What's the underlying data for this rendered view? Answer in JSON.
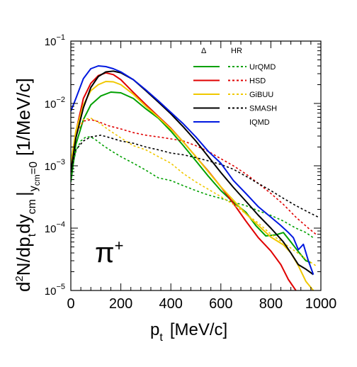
{
  "chart_data": {
    "type": "line",
    "ylog": true,
    "xlim": [
      0,
      1000
    ],
    "ylim": [
      1e-05,
      0.1
    ],
    "xticks": [
      {
        "v": 0,
        "label": "0"
      },
      {
        "v": 200,
        "label": "200"
      },
      {
        "v": 400,
        "label": "400"
      },
      {
        "v": 600,
        "label": "600"
      },
      {
        "v": 800,
        "label": "800"
      },
      {
        "v": 1000,
        "label": "1000"
      }
    ],
    "yticks": [
      {
        "v": 0.1,
        "base": "10",
        "exp": "−1"
      },
      {
        "v": 0.01,
        "base": "10",
        "exp": "−2"
      },
      {
        "v": 0.001,
        "base": "10",
        "exp": "−3"
      },
      {
        "v": 0.0001,
        "base": "10",
        "exp": "−4"
      },
      {
        "v": 1e-05,
        "base": "10",
        "exp": "−5"
      }
    ],
    "xlabel": {
      "main": "p",
      "sub": "t",
      "unit": "[MeV/c]"
    },
    "ylabel": {
      "pre": "d",
      "sup": "2",
      "mid": "N/dp",
      "sub1": "t",
      "mid2": "dy",
      "sub2": "cm",
      "bar": "|",
      "sub3": "y",
      "sub3b": "cm",
      "sub3c": "=0",
      "unit": "[1/MeV/c]"
    },
    "annotation": {
      "base": "π",
      "sup": "+"
    },
    "legend": {
      "header_delta": "Δ",
      "header_hr": "HR",
      "position": "top-right",
      "entries": [
        {
          "name": "UrQMD",
          "color": "#00a000",
          "hr": true
        },
        {
          "name": "HSD",
          "color": "#e00000",
          "hr": true
        },
        {
          "name": "GiBUU",
          "color": "#f0c800",
          "hr": true
        },
        {
          "name": "SMASH",
          "color": "#000000",
          "hr": true
        },
        {
          "name": "IQMD",
          "color": "#0018e0",
          "hr": false
        }
      ]
    },
    "series": [
      {
        "model": "UrQMD",
        "component": "Delta",
        "color": "#00a000",
        "dash": false,
        "points": [
          [
            0,
            0.00055
          ],
          [
            20,
            0.0022
          ],
          [
            50,
            0.0055
          ],
          [
            80,
            0.0095
          ],
          [
            120,
            0.0132
          ],
          [
            160,
            0.0152
          ],
          [
            200,
            0.0148
          ],
          [
            250,
            0.012
          ],
          [
            300,
            0.0082
          ],
          [
            350,
            0.0058
          ],
          [
            400,
            0.0036
          ],
          [
            450,
            0.0021
          ],
          [
            500,
            0.0012
          ],
          [
            550,
            0.00068
          ],
          [
            600,
            0.0004
          ],
          [
            650,
            0.00026
          ],
          [
            700,
            0.00018
          ],
          [
            740,
            0.00011
          ],
          [
            780,
            7.5e-05
          ],
          [
            820,
            7.8e-05
          ],
          [
            850,
            8.5e-05
          ],
          [
            880,
            6e-05
          ],
          [
            910,
            4.2e-05
          ],
          [
            940,
            3e-05
          ],
          [
            960,
            2.8e-05
          ]
        ]
      },
      {
        "model": "UrQMD",
        "component": "HR",
        "color": "#00a000",
        "dash": true,
        "points": [
          [
            0,
            0.00075
          ],
          [
            20,
            0.0017
          ],
          [
            40,
            0.0025
          ],
          [
            60,
            0.0029
          ],
          [
            80,
            0.0029
          ],
          [
            100,
            0.0026
          ],
          [
            130,
            0.0021
          ],
          [
            160,
            0.00175
          ],
          [
            200,
            0.0014
          ],
          [
            250,
            0.0011
          ],
          [
            300,
            0.00085
          ],
          [
            350,
            0.00064
          ],
          [
            400,
            0.00058
          ],
          [
            450,
            0.00048
          ],
          [
            500,
            0.0004
          ],
          [
            550,
            0.00034
          ],
          [
            600,
            0.0003
          ],
          [
            650,
            0.00026
          ],
          [
            700,
            0.00023
          ],
          [
            750,
            0.00019
          ],
          [
            800,
            0.00016
          ],
          [
            850,
            0.00013
          ],
          [
            900,
            0.0001
          ],
          [
            940,
            8.5e-05
          ],
          [
            970,
            7e-05
          ]
        ]
      },
      {
        "model": "HSD",
        "component": "Delta",
        "color": "#e00000",
        "dash": false,
        "points": [
          [
            0,
            0.001
          ],
          [
            20,
            0.0035
          ],
          [
            50,
            0.012
          ],
          [
            80,
            0.021
          ],
          [
            110,
            0.028
          ],
          [
            140,
            0.031
          ],
          [
            170,
            0.029
          ],
          [
            200,
            0.024
          ],
          [
            250,
            0.015
          ],
          [
            300,
            0.0096
          ],
          [
            350,
            0.0062
          ],
          [
            400,
            0.004
          ],
          [
            450,
            0.0024
          ],
          [
            500,
            0.0014
          ],
          [
            550,
            0.00082
          ],
          [
            600,
            0.00046
          ],
          [
            650,
            0.00025
          ],
          [
            700,
            0.00013
          ],
          [
            750,
            7e-05
          ],
          [
            800,
            4.3e-05
          ],
          [
            840,
            2.6e-05
          ],
          [
            870,
            1.5e-05
          ],
          [
            900,
            1e-05
          ]
        ]
      },
      {
        "model": "HSD",
        "component": "HR",
        "color": "#e00000",
        "dash": true,
        "points": [
          [
            0,
            0.0012
          ],
          [
            20,
            0.0032
          ],
          [
            50,
            0.0052
          ],
          [
            80,
            0.0055
          ],
          [
            110,
            0.0051
          ],
          [
            150,
            0.0044
          ],
          [
            200,
            0.0039
          ],
          [
            250,
            0.0034
          ],
          [
            300,
            0.0031
          ],
          [
            350,
            0.0029
          ],
          [
            400,
            0.0027
          ],
          [
            450,
            0.0025
          ],
          [
            500,
            0.0021
          ],
          [
            550,
            0.0017
          ],
          [
            600,
            0.0013
          ],
          [
            650,
            0.001
          ],
          [
            700,
            0.00074
          ],
          [
            750,
            0.00052
          ],
          [
            800,
            0.00036
          ],
          [
            850,
            0.00024
          ],
          [
            900,
            0.00015
          ],
          [
            950,
            0.0001
          ],
          [
            980,
            8e-05
          ]
        ]
      },
      {
        "model": "GiBUU",
        "component": "Delta",
        "color": "#f0c800",
        "dash": false,
        "points": [
          [
            0,
            0.0011
          ],
          [
            20,
            0.0036
          ],
          [
            50,
            0.0095
          ],
          [
            80,
            0.016
          ],
          [
            110,
            0.02
          ],
          [
            140,
            0.0225
          ],
          [
            170,
            0.0222
          ],
          [
            200,
            0.02
          ],
          [
            250,
            0.014
          ],
          [
            300,
            0.009
          ],
          [
            350,
            0.006
          ],
          [
            400,
            0.0039
          ],
          [
            450,
            0.0024
          ],
          [
            500,
            0.0014
          ],
          [
            550,
            0.0008
          ],
          [
            600,
            0.00046
          ],
          [
            650,
            0.00028
          ],
          [
            700,
            0.00017
          ],
          [
            750,
            0.00011
          ],
          [
            800,
            7.2e-05
          ],
          [
            850,
            5.4e-05
          ],
          [
            880,
            4e-05
          ],
          [
            910,
            2.5e-05
          ],
          [
            940,
            1.4e-05
          ],
          [
            970,
            1e-05
          ]
        ]
      },
      {
        "model": "GiBUU",
        "component": "HR",
        "color": "#f0c800",
        "dash": true,
        "points": [
          [
            0,
            0.0012
          ],
          [
            20,
            0.0032
          ],
          [
            50,
            0.0055
          ],
          [
            80,
            0.0058
          ],
          [
            110,
            0.005
          ],
          [
            150,
            0.0038
          ],
          [
            200,
            0.0028
          ],
          [
            250,
            0.0021
          ],
          [
            300,
            0.0018
          ],
          [
            350,
            0.0014
          ],
          [
            400,
            0.0011
          ],
          [
            450,
            0.00075
          ],
          [
            500,
            0.00055
          ],
          [
            550,
            0.00042
          ],
          [
            600,
            0.00032
          ],
          [
            650,
            0.00024
          ],
          [
            700,
            0.00017
          ],
          [
            750,
            0.00012
          ],
          [
            800,
            8e-05
          ],
          [
            850,
            5.8e-05
          ],
          [
            900,
            4.2e-05
          ],
          [
            950,
            3e-05
          ],
          [
            980,
            2.5e-05
          ]
        ]
      },
      {
        "model": "SMASH",
        "component": "Delta",
        "color": "#000000",
        "dash": false,
        "points": [
          [
            0,
            0.0008
          ],
          [
            20,
            0.0028
          ],
          [
            50,
            0.0085
          ],
          [
            80,
            0.018
          ],
          [
            110,
            0.027
          ],
          [
            140,
            0.032
          ],
          [
            170,
            0.033
          ],
          [
            200,
            0.031
          ],
          [
            250,
            0.024
          ],
          [
            300,
            0.016
          ],
          [
            350,
            0.0105
          ],
          [
            400,
            0.0068
          ],
          [
            450,
            0.0042
          ],
          [
            500,
            0.0025
          ],
          [
            550,
            0.0014
          ],
          [
            600,
            0.00078
          ],
          [
            650,
            0.00045
          ],
          [
            700,
            0.00027
          ],
          [
            750,
            0.00016
          ],
          [
            800,
            0.0001
          ],
          [
            850,
            6e-05
          ],
          [
            880,
            4e-05
          ],
          [
            910,
            2.6e-05
          ],
          [
            940,
            2.2e-05
          ],
          [
            970,
            1.8e-05
          ]
        ]
      },
      {
        "model": "SMASH",
        "component": "HR",
        "color": "#000000",
        "dash": true,
        "points": [
          [
            0,
            0.0008
          ],
          [
            20,
            0.0018
          ],
          [
            50,
            0.0025
          ],
          [
            80,
            0.0029
          ],
          [
            120,
            0.0031
          ],
          [
            160,
            0.0028
          ],
          [
            200,
            0.0025
          ],
          [
            250,
            0.0023
          ],
          [
            300,
            0.002
          ],
          [
            350,
            0.0018
          ],
          [
            400,
            0.0016
          ],
          [
            450,
            0.0015
          ],
          [
            500,
            0.00135
          ],
          [
            550,
            0.0012
          ],
          [
            600,
            0.00105
          ],
          [
            650,
            0.00088
          ],
          [
            700,
            0.00068
          ],
          [
            750,
            0.00052
          ],
          [
            800,
            0.0004
          ],
          [
            850,
            0.0003
          ],
          [
            900,
            0.00023
          ],
          [
            950,
            0.00018
          ],
          [
            990,
            0.00015
          ]
        ]
      },
      {
        "model": "IQMD",
        "component": "Delta",
        "color": "#0018e0",
        "dash": false,
        "points": [
          [
            0,
            0.0075
          ],
          [
            20,
            0.012
          ],
          [
            50,
            0.025
          ],
          [
            80,
            0.036
          ],
          [
            110,
            0.04
          ],
          [
            140,
            0.039
          ],
          [
            170,
            0.036
          ],
          [
            200,
            0.032
          ],
          [
            250,
            0.024
          ],
          [
            300,
            0.0165
          ],
          [
            350,
            0.011
          ],
          [
            400,
            0.0072
          ],
          [
            450,
            0.0047
          ],
          [
            500,
            0.0029
          ],
          [
            550,
            0.0017
          ],
          [
            600,
            0.0011
          ],
          [
            650,
            0.00058
          ],
          [
            700,
            0.00036
          ],
          [
            750,
            0.00022
          ],
          [
            800,
            0.00015
          ],
          [
            840,
            0.00011
          ],
          [
            870,
            8.5e-05
          ],
          [
            890,
            7e-05
          ],
          [
            910,
            4.5e-05
          ],
          [
            930,
            5.5e-05
          ],
          [
            950,
            3e-05
          ],
          [
            970,
            1.8e-05
          ]
        ]
      }
    ]
  }
}
